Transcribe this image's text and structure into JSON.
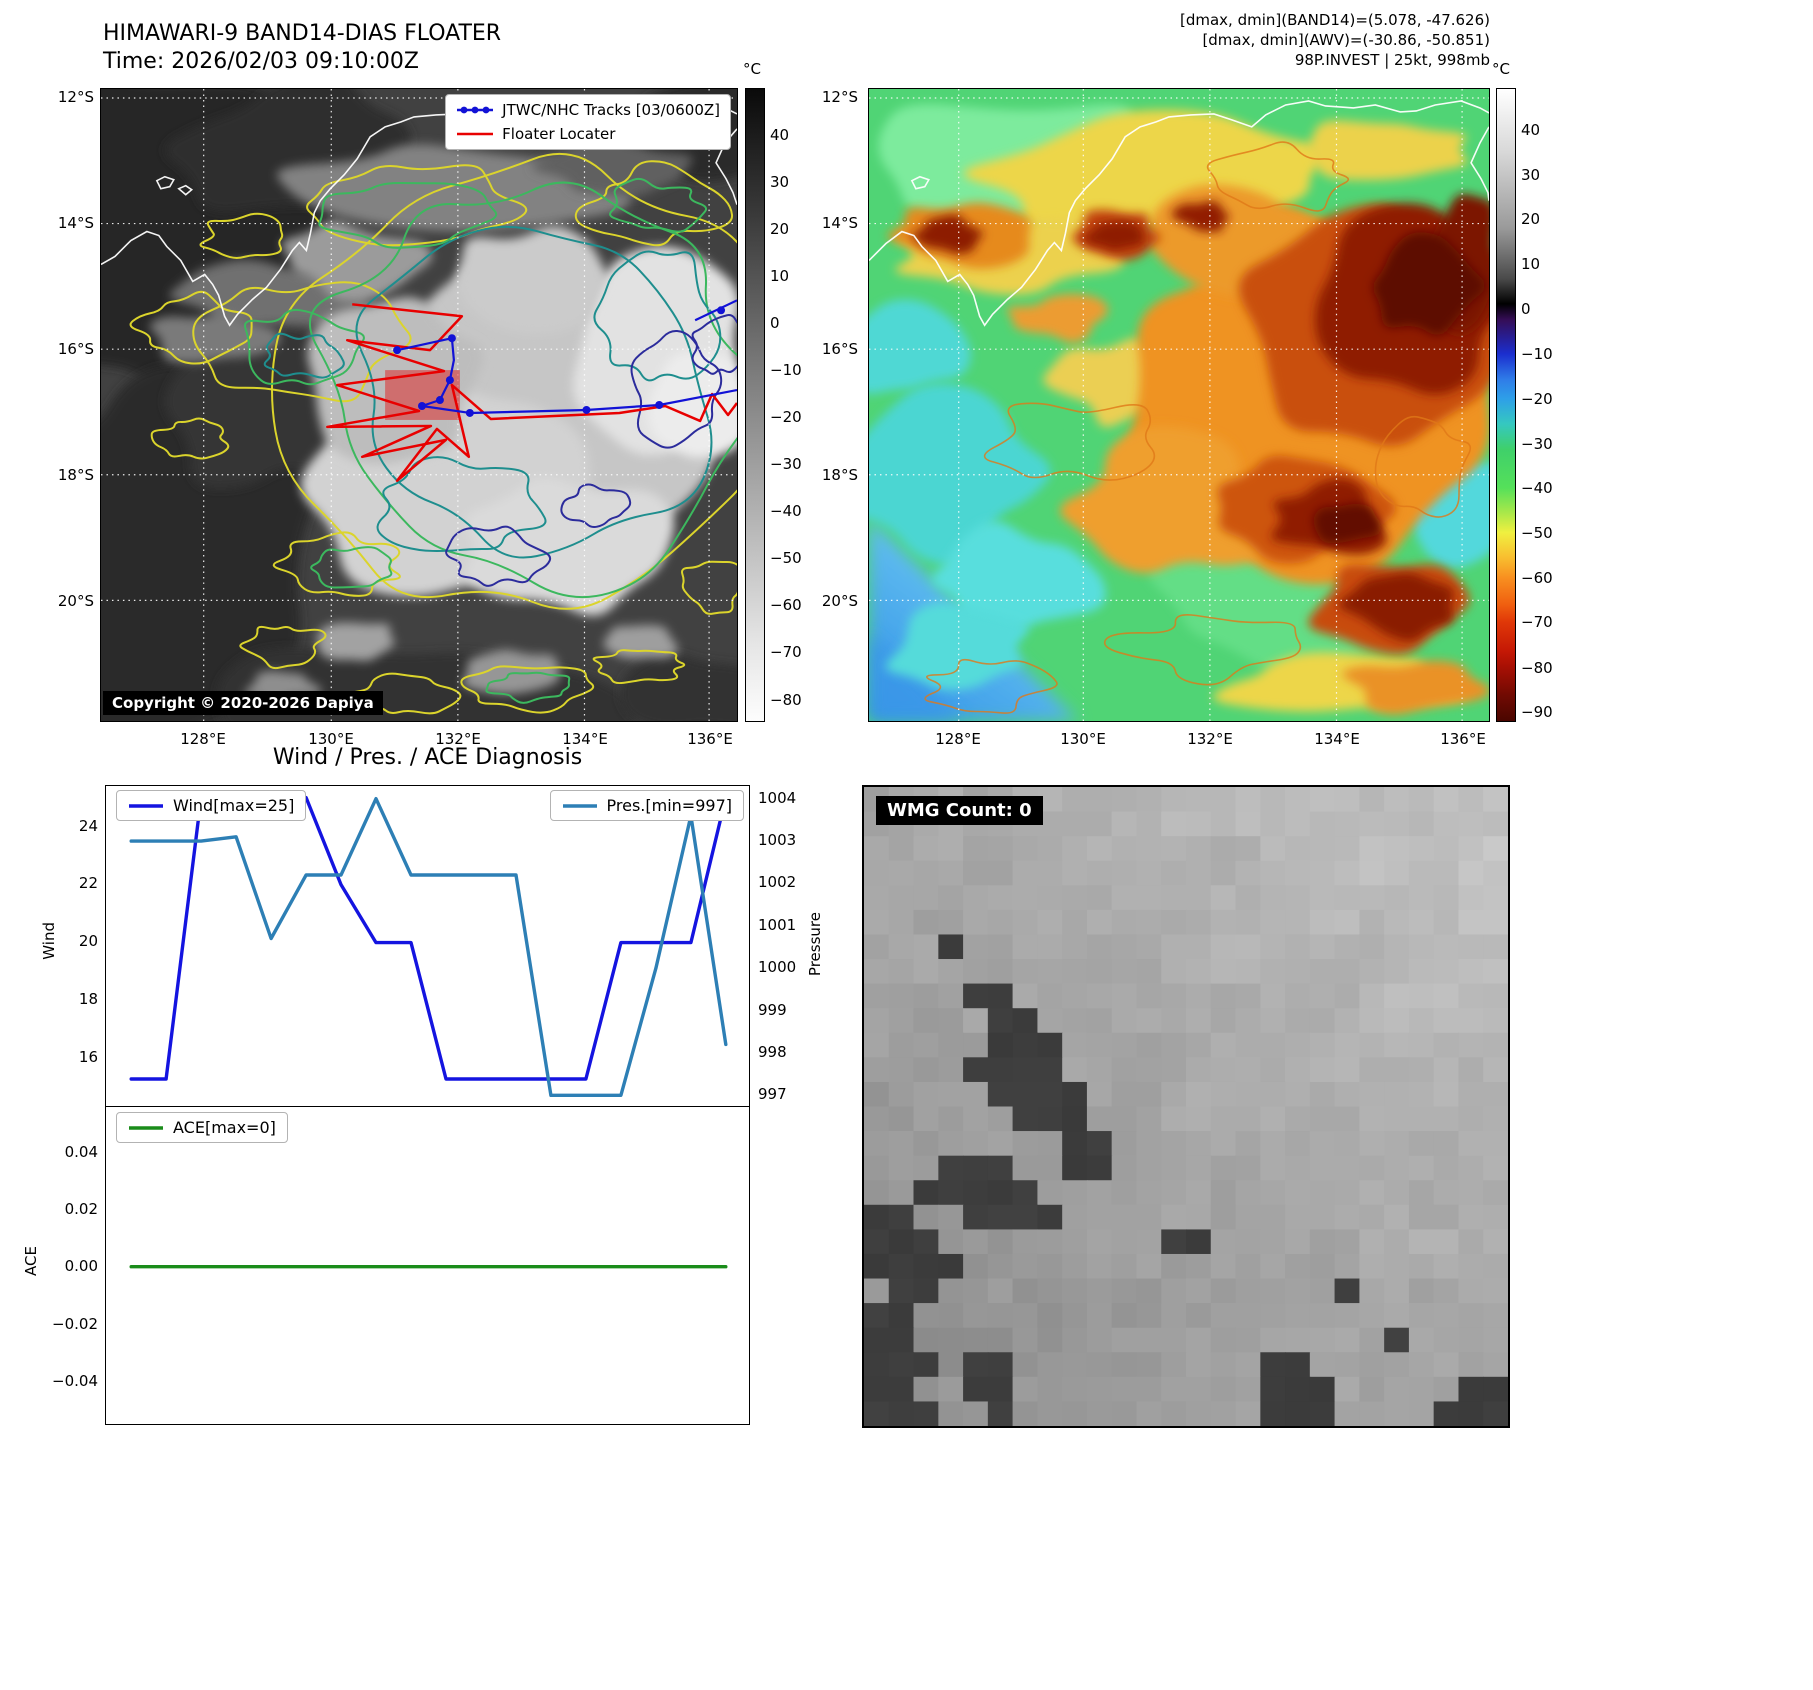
{
  "band14": {
    "title": "HIMAWARI-9 BAND14-DIAS FLOATER",
    "time_line": "Time: 2026/02/03 09:10:00Z",
    "legend_tracks": "JTWC/NHC Tracks [03/0600Z]",
    "legend_floater": "Floater Locater",
    "copyright": "Copyright © 2020-2026 Dapiya",
    "track_color": "#1212d6",
    "floater_color": "#e80000",
    "colorbar_unit": "°C",
    "colorbar_ticks": [
      "40",
      "30",
      "20",
      "10",
      "0",
      "−10",
      "−20",
      "−30",
      "−40",
      "−50",
      "−60",
      "−70",
      "−80"
    ],
    "lat_ticks": [
      "12°S",
      "14°S",
      "16°S",
      "18°S",
      "20°S"
    ],
    "lon_ticks": [
      "128°E",
      "130°E",
      "132°E",
      "134°E",
      "136°E"
    ]
  },
  "awv": {
    "header_line1": "[dmax, dmin](BAND14)=(5.078, -47.626)",
    "header_line2": "[dmax, dmin](AWV)=(-30.86, -50.851)",
    "header_line3": "98P.INVEST | 25kt, 998mb",
    "colorbar_unit": "°C",
    "colorbar_ticks": [
      "40",
      "30",
      "20",
      "10",
      "0",
      "−10",
      "−20",
      "−30",
      "−40",
      "−50",
      "−60",
      "−70",
      "−80",
      "−90"
    ],
    "lat_ticks": [
      "12°S",
      "14°S",
      "16°S",
      "18°S",
      "20°S"
    ],
    "lon_ticks": [
      "128°E",
      "130°E",
      "132°E",
      "134°E",
      "136°E"
    ]
  },
  "diagnosis": {
    "title": "Wind / Pres. / ACE Diagnosis",
    "wind_legend": "Wind[max=25]",
    "pres_legend": "Pres.[min=997]",
    "ace_legend": "ACE[max=0]",
    "wind_ylabel": "Wind",
    "pres_ylabel": "Pressure",
    "ace_ylabel": "ACE",
    "wind_ticks": [
      "24",
      "22",
      "20",
      "18",
      "16"
    ],
    "pres_ticks": [
      "1004",
      "1003",
      "1002",
      "1001",
      "1000",
      "999",
      "998",
      "997"
    ],
    "ace_ticks": [
      "0.04",
      "0.02",
      "0.00",
      "−0.02",
      "−0.04"
    ]
  },
  "wmg": {
    "count_label": "WMG Count: 0"
  },
  "chart_data": [
    {
      "type": "line",
      "title": "Wind / Pres. / ACE Diagnosis",
      "x": [
        0,
        1,
        2,
        3,
        4,
        5,
        6,
        7,
        8,
        9,
        10,
        11,
        12,
        13,
        14,
        15,
        16,
        17
      ],
      "grid": false,
      "legend_position": "upper-left and upper-right",
      "series": [
        {
          "name": "Wind[max=25]",
          "axis": "left",
          "ylabel": "Wind",
          "color": "#1414e0",
          "ylim": [
            14.3,
            25.4
          ],
          "yticks": [
            16,
            18,
            20,
            22,
            24
          ],
          "max": 25,
          "values": [
            15.3,
            15.3,
            25,
            25,
            25,
            25,
            22,
            20,
            20,
            15.3,
            15.3,
            15.3,
            15.3,
            15.3,
            20,
            20,
            20,
            25
          ]
        },
        {
          "name": "Pres.[min=997]",
          "axis": "right",
          "ylabel": "Pressure",
          "color": "#2d7fb5",
          "ylim": [
            996.7,
            1004.3
          ],
          "yticks": [
            997,
            998,
            999,
            1000,
            1001,
            1002,
            1003,
            1004
          ],
          "min": 997,
          "values": [
            1003,
            1003,
            1003,
            1003.1,
            1000.7,
            1002.2,
            1002.2,
            1004,
            1002.2,
            1002.2,
            1002.2,
            1002.2,
            997,
            997,
            997,
            1000,
            1003.6,
            998.2
          ]
        }
      ]
    },
    {
      "type": "line",
      "title": "ACE",
      "x": [
        0,
        1,
        2,
        3,
        4,
        5,
        6,
        7,
        8,
        9,
        10,
        11,
        12,
        13,
        14,
        15,
        16,
        17
      ],
      "grid": false,
      "series": [
        {
          "name": "ACE[max=0]",
          "axis": "left",
          "ylabel": "ACE",
          "color": "#1a8c1a",
          "ylim": [
            -0.055,
            0.0555
          ],
          "yticks": [
            -0.04,
            -0.02,
            0.0,
            0.02,
            0.04
          ],
          "max": 0,
          "values": [
            0,
            0,
            0,
            0,
            0,
            0,
            0,
            0,
            0,
            0,
            0,
            0,
            0,
            0,
            0,
            0,
            0,
            0
          ]
        }
      ]
    }
  ]
}
